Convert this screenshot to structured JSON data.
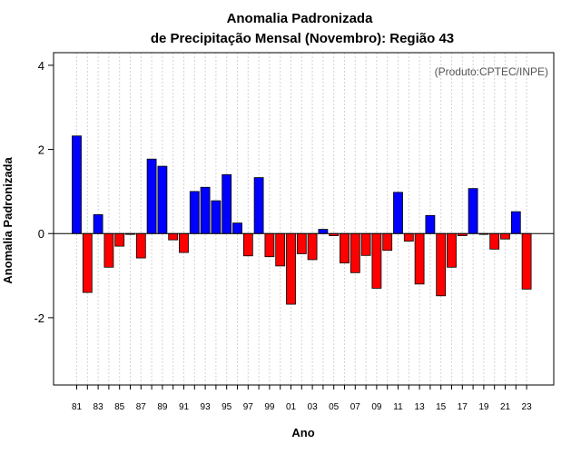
{
  "chart_data": {
    "type": "bar",
    "title_line1": "Anomalia Padronizada",
    "title_line2": "de Precipitação Mensal (Novembro): Região 43",
    "xlabel": "Ano",
    "ylabel": "Anomalia Padronizada",
    "credit": "(Produto:CPTEC/INPE)",
    "ylim": [
      -3.6,
      4.3
    ],
    "yticks": [
      -2,
      0,
      2,
      4
    ],
    "ytick_labels": [
      "-2",
      "0",
      "2",
      "4"
    ],
    "xtick_labels": [
      "81",
      "83",
      "85",
      "87",
      "89",
      "91",
      "93",
      "95",
      "97",
      "99",
      "01",
      "03",
      "05",
      "07",
      "09",
      "11",
      "13",
      "15",
      "17",
      "19",
      "21",
      "23"
    ],
    "categories": [
      "1981",
      "1982",
      "1983",
      "1984",
      "1985",
      "1986",
      "1987",
      "1988",
      "1989",
      "1990",
      "1991",
      "1992",
      "1993",
      "1994",
      "1995",
      "1996",
      "1997",
      "1998",
      "1999",
      "2000",
      "2001",
      "2002",
      "2003",
      "2004",
      "2005",
      "2006",
      "2007",
      "2008",
      "2009",
      "2010",
      "2011",
      "2012",
      "2013",
      "2014",
      "2015",
      "2016",
      "2017",
      "2018",
      "2019",
      "2020",
      "2021",
      "2022",
      "2023"
    ],
    "values": [
      2.32,
      -1.4,
      0.45,
      -0.8,
      -0.3,
      -0.02,
      -0.58,
      1.77,
      1.6,
      -0.15,
      -0.45,
      1.0,
      1.1,
      0.78,
      1.4,
      0.25,
      -0.53,
      1.33,
      -0.55,
      -0.77,
      -1.68,
      -0.48,
      -0.62,
      0.1,
      -0.05,
      -0.7,
      -0.93,
      -0.52,
      -1.3,
      -0.4,
      0.98,
      -0.18,
      -1.2,
      0.43,
      -1.48,
      -0.8,
      -0.05,
      1.07,
      -0.02,
      -0.37,
      -0.13,
      0.52,
      -1.32
    ],
    "colors": {
      "positive": "#0000ff",
      "negative": "#ff0000",
      "grid": "#d3d3d3"
    }
  }
}
